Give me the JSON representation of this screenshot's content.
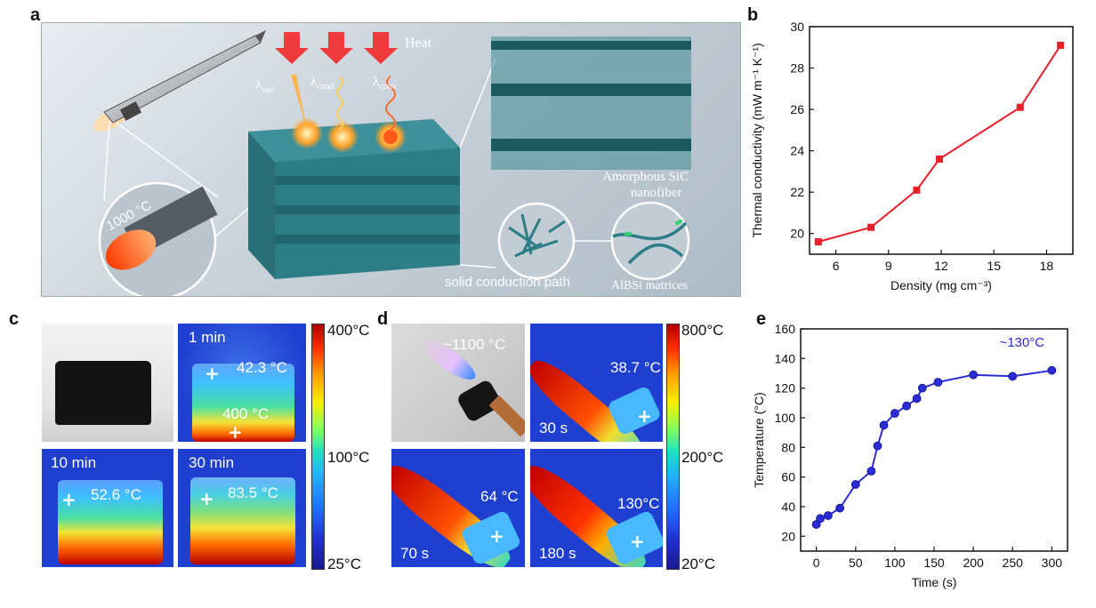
{
  "panels": {
    "a": "a",
    "b": "b",
    "c": "c",
    "d": "d",
    "e": "e"
  },
  "schematic": {
    "heat_label": "Heat",
    "lambda_rad": "rad",
    "lambda_cond": "cond",
    "lambda_conv": "conv",
    "lambda_symbol": "λ",
    "temp_1000": "1000 °C",
    "amorphous_sic_1": "Amorphous SiC",
    "amorphous_sic_2": "nanofiber",
    "albsi": "AlBSi matrices",
    "solid_path": "solid conduction path"
  },
  "panel_c": {
    "tiles": [
      {
        "time": "1 min",
        "temp_top": "42.3 °C",
        "temp_bottom": "400 °C"
      },
      {
        "time": "10 min",
        "temp_top": "52.6 °C"
      },
      {
        "time": "30 min",
        "temp_top": "83.5 °C"
      }
    ],
    "colorbar": {
      "max": "400°C",
      "mid": "100°C",
      "min": "25°C"
    }
  },
  "panel_d": {
    "photo_temp": "~1100 °C",
    "tiles": [
      {
        "time": "30 s",
        "temp": "38.7 °C"
      },
      {
        "time": "70 s",
        "temp": "64 °C"
      },
      {
        "time": "180 s",
        "temp": "130°C"
      }
    ],
    "colorbar": {
      "max": "800°C",
      "mid": "200°C",
      "min": "20°C"
    }
  },
  "colors": {
    "series_b": "#e8202a",
    "series_e": "#2b2bd6",
    "schematic_bg": "#c9d2da",
    "foam": "#2d7d86",
    "thermal_bg": "#1f3fd0"
  },
  "chart_data": [
    {
      "type": "line",
      "panel": "b",
      "title": "",
      "xlabel": "Density (mg cm⁻³)",
      "ylabel": "Thermal conductivity (mW m⁻¹ K⁻¹)",
      "xlim": [
        4.5,
        19.5
      ],
      "ylim": [
        19,
        30
      ],
      "xticks": [
        6,
        9,
        12,
        15,
        18
      ],
      "yticks": [
        20,
        22,
        24,
        26,
        28,
        30
      ],
      "x": [
        5.0,
        8.0,
        10.6,
        11.9,
        16.5,
        18.8
      ],
      "y": [
        19.6,
        20.3,
        22.1,
        23.6,
        26.1,
        29.1
      ],
      "grid": false
    },
    {
      "type": "line",
      "panel": "e",
      "title": "",
      "xlabel": "Time (s)",
      "ylabel": "Temperature (°C)",
      "xlim": [
        -20,
        320
      ],
      "ylim": [
        10,
        160
      ],
      "xticks": [
        0,
        50,
        100,
        150,
        200,
        250,
        300
      ],
      "yticks": [
        20,
        40,
        60,
        80,
        100,
        120,
        140,
        160
      ],
      "annotation": "~130°C",
      "x": [
        0,
        5,
        15,
        30,
        50,
        70,
        78,
        86,
        100,
        115,
        128,
        135,
        155,
        200,
        250,
        300
      ],
      "y": [
        28,
        32,
        34,
        39,
        55,
        64,
        81,
        95,
        103,
        108,
        113,
        120,
        124,
        129,
        128,
        132
      ],
      "grid": false
    }
  ]
}
